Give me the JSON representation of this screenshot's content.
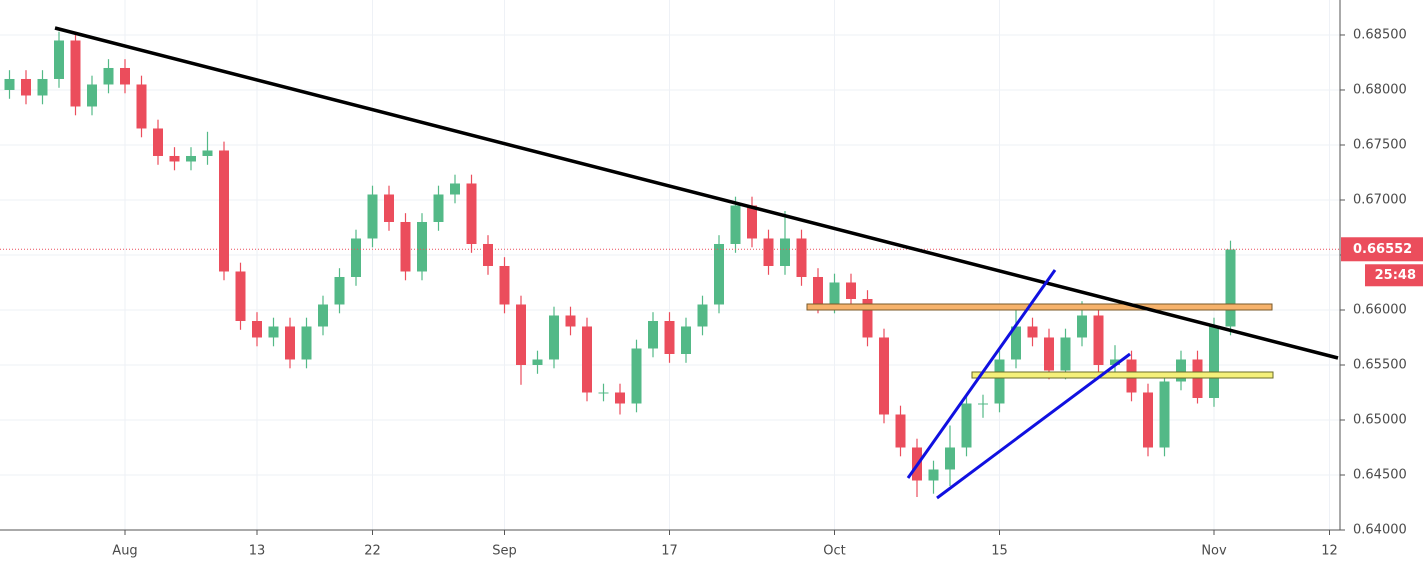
{
  "chart_data": {
    "type": "candlestick",
    "categories": [
      null,
      null,
      null,
      null,
      null,
      null,
      null,
      "Aug",
      null,
      null,
      null,
      null,
      null,
      null,
      null,
      "13",
      null,
      null,
      null,
      null,
      null,
      null,
      "22",
      null,
      null,
      null,
      null,
      null,
      null,
      null,
      "Sep",
      null,
      null,
      null,
      null,
      null,
      null,
      null,
      null,
      null,
      "17",
      null,
      null,
      null,
      null,
      null,
      null,
      null,
      null,
      null,
      "Oct",
      null,
      null,
      null,
      null,
      null,
      null,
      null,
      null,
      null,
      "15",
      null,
      null,
      null,
      null,
      null,
      null,
      null,
      null,
      null,
      null,
      null,
      null,
      "Nov",
      null,
      null,
      null,
      null,
      null,
      null,
      "12"
    ],
    "open": [
      0.68,
      0.681,
      0.6795,
      0.681,
      0.6845,
      0.6785,
      0.6805,
      0.682,
      0.6805,
      0.6765,
      0.674,
      0.6735,
      0.674,
      0.6745,
      0.6635,
      0.659,
      0.6575,
      0.6585,
      0.6555,
      0.6585,
      0.6605,
      0.663,
      0.6665,
      0.6705,
      0.668,
      0.6635,
      0.668,
      0.6705,
      0.6715,
      0.666,
      0.664,
      0.6605,
      0.655,
      0.6555,
      0.6595,
      0.6585,
      0.6525,
      0.6525,
      0.6515,
      0.6565,
      0.659,
      0.656,
      0.6585,
      0.6605,
      0.666,
      0.6695,
      0.6665,
      0.664,
      0.6665,
      0.663,
      0.6605,
      0.6625,
      0.661,
      0.6575,
      0.6505,
      0.6475,
      0.6445,
      0.6455,
      0.6475,
      0.6515,
      0.6515,
      0.6555,
      0.6585,
      0.6575,
      0.6545,
      0.6575,
      0.6595,
      0.655,
      0.6555,
      0.6525,
      0.6475,
      0.6535,
      0.6555,
      0.652,
      0.6585,
      null,
      null,
      null,
      null,
      null,
      null
    ],
    "high": [
      0.6818,
      0.6818,
      0.6818,
      0.6853,
      0.6853,
      0.6813,
      0.6828,
      0.6828,
      0.6813,
      0.6773,
      0.6748,
      0.6748,
      0.6762,
      0.6753,
      0.6643,
      0.6598,
      0.6593,
      0.6593,
      0.6593,
      0.6613,
      0.6638,
      0.6673,
      0.6713,
      0.6713,
      0.6688,
      0.6688,
      0.6713,
      0.6723,
      0.6723,
      0.6668,
      0.6648,
      0.6613,
      0.6563,
      0.6603,
      0.6603,
      0.6593,
      0.6533,
      0.6533,
      0.6573,
      0.6598,
      0.6598,
      0.6593,
      0.6613,
      0.6668,
      0.6703,
      0.6703,
      0.6673,
      0.669,
      0.6673,
      0.6638,
      0.6633,
      0.6633,
      0.6618,
      0.6583,
      0.6513,
      0.6483,
      0.6463,
      0.6495,
      0.6523,
      0.6523,
      0.6563,
      0.66,
      0.6593,
      0.6583,
      0.6583,
      0.6608,
      0.6603,
      0.6568,
      0.6563,
      0.6533,
      0.6543,
      0.6563,
      0.6563,
      0.6593,
      0.6663,
      null,
      null,
      null,
      null,
      null,
      null
    ],
    "low": [
      0.6792,
      0.6787,
      0.6787,
      0.6802,
      0.6777,
      0.6777,
      0.6797,
      0.6797,
      0.6757,
      0.6732,
      0.6727,
      0.6727,
      0.6732,
      0.6627,
      0.6582,
      0.6567,
      0.6567,
      0.6547,
      0.6547,
      0.6577,
      0.6597,
      0.6622,
      0.6657,
      0.6672,
      0.6627,
      0.6627,
      0.6672,
      0.6697,
      0.6652,
      0.6632,
      0.6597,
      0.6532,
      0.6542,
      0.6547,
      0.6577,
      0.6517,
      0.6517,
      0.6505,
      0.6507,
      0.6557,
      0.6552,
      0.6552,
      0.6577,
      0.6597,
      0.6652,
      0.6657,
      0.6632,
      0.6632,
      0.6622,
      0.6597,
      0.6597,
      0.6602,
      0.6567,
      0.6497,
      0.6467,
      0.643,
      0.6433,
      0.644,
      0.6467,
      0.6502,
      0.6507,
      0.6547,
      0.6567,
      0.6537,
      0.6537,
      0.6567,
      0.6542,
      0.6542,
      0.6517,
      0.6467,
      0.6467,
      0.6527,
      0.6515,
      0.6512,
      0.6577,
      null,
      null,
      null,
      null,
      null,
      null
    ],
    "close": [
      0.681,
      0.6795,
      0.681,
      0.6845,
      0.6785,
      0.6805,
      0.682,
      0.6805,
      0.6765,
      0.674,
      0.6735,
      0.674,
      0.6745,
      0.6635,
      0.659,
      0.6575,
      0.6585,
      0.6555,
      0.6585,
      0.6605,
      0.663,
      0.6665,
      0.6705,
      0.668,
      0.6635,
      0.668,
      0.6705,
      0.6715,
      0.666,
      0.664,
      0.6605,
      0.655,
      0.6555,
      0.6595,
      0.6585,
      0.6525,
      0.6525,
      0.6515,
      0.6565,
      0.659,
      0.656,
      0.6585,
      0.6605,
      0.666,
      0.6695,
      0.6665,
      0.664,
      0.6665,
      0.663,
      0.6605,
      0.6625,
      0.661,
      0.6575,
      0.6505,
      0.6475,
      0.6445,
      0.6455,
      0.6475,
      0.6515,
      0.6515,
      0.6555,
      0.6585,
      0.6575,
      0.6545,
      0.6575,
      0.6595,
      0.655,
      0.6555,
      0.6525,
      0.6475,
      0.6535,
      0.6555,
      0.652,
      0.6585,
      0.6655,
      null,
      null,
      null,
      null,
      null,
      null
    ],
    "up_color": "#53b987",
    "down_color": "#eb4d5c",
    "ylim": [
      0.64,
      0.68818
    ],
    "yticks": [
      {
        "value": 0.64,
        "label": "0.64000"
      },
      {
        "value": 0.645,
        "label": "0.64500"
      },
      {
        "value": 0.65,
        "label": "0.65000"
      },
      {
        "value": 0.655,
        "label": "0.65500"
      },
      {
        "value": 0.66,
        "label": "0.66000"
      },
      {
        "value": 0.665,
        "label": "0.66500"
      },
      {
        "value": 0.67,
        "label": "0.67000"
      },
      {
        "value": 0.675,
        "label": "0.67500"
      },
      {
        "value": 0.68,
        "label": "0.68000"
      },
      {
        "value": 0.685,
        "label": "0.68500"
      }
    ],
    "grid": true,
    "last_price": 0.66552,
    "countdown": "25:48"
  }
}
